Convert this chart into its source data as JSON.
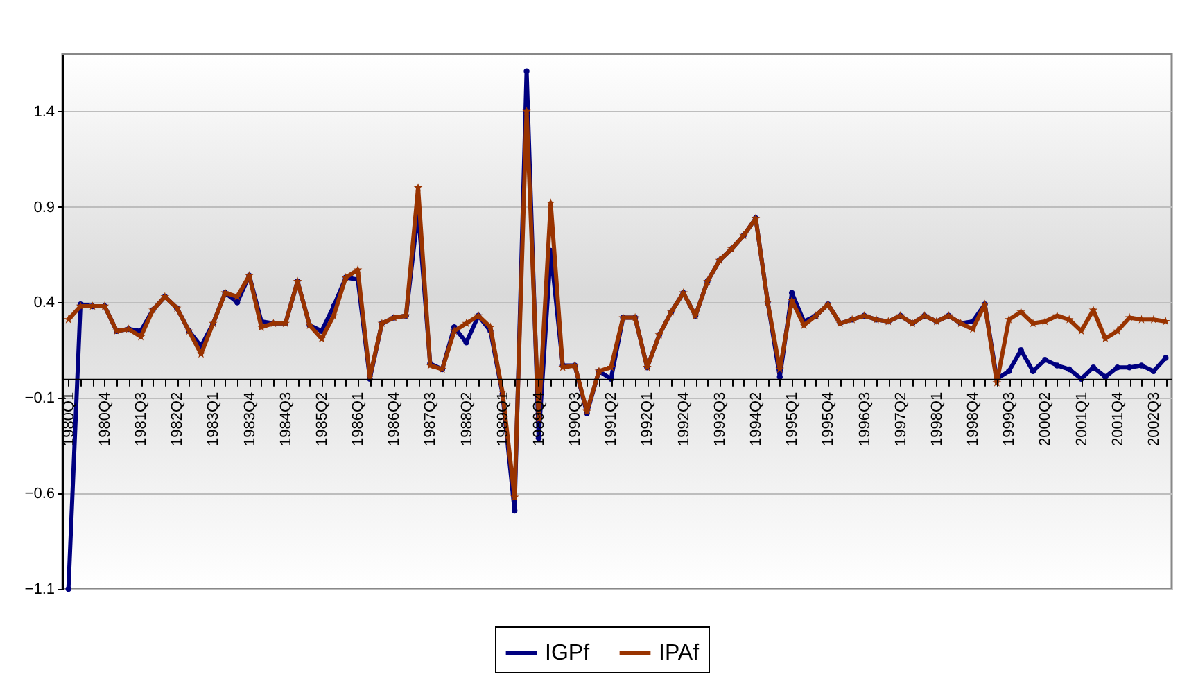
{
  "chart_data": {
    "type": "line",
    "categories": [
      "1980Q1",
      null,
      null,
      "1980Q4",
      null,
      null,
      "1981Q3",
      null,
      null,
      "1982Q2",
      null,
      null,
      "1983Q1",
      null,
      null,
      "1983Q4",
      null,
      null,
      "1984Q3",
      null,
      null,
      "1985Q2",
      null,
      null,
      "1986Q1",
      null,
      null,
      "1986Q4",
      null,
      null,
      "1987Q3",
      null,
      null,
      "1988Q2",
      null,
      null,
      "1989Q1",
      null,
      null,
      "1989Q4",
      null,
      null,
      "1990Q3",
      null,
      null,
      "1991Q2",
      null,
      null,
      "1992Q1",
      null,
      null,
      "1992Q4",
      null,
      null,
      "1993Q3",
      null,
      null,
      "1994Q2",
      null,
      null,
      "1995Q1",
      null,
      null,
      "1995Q4",
      null,
      null,
      "1996Q3",
      null,
      null,
      "1997Q2",
      null,
      null,
      "1998Q1",
      null,
      null,
      "1998Q4",
      null,
      null,
      "1999Q3",
      null,
      null,
      "2000Q2",
      null,
      null,
      "2001Q1",
      null,
      null,
      "2001Q4",
      null,
      null,
      "2002Q3",
      null
    ],
    "series": [
      {
        "name": "IGPf",
        "color": "#000080",
        "marker": "circle",
        "values": [
          -1.1,
          0.39,
          0.38,
          0.38,
          0.25,
          0.26,
          0.25,
          0.36,
          0.43,
          0.37,
          0.25,
          0.17,
          0.29,
          0.45,
          0.4,
          0.54,
          0.3,
          0.29,
          0.29,
          0.51,
          0.28,
          0.25,
          0.38,
          0.53,
          0.52,
          0.0,
          0.29,
          0.32,
          0.33,
          0.88,
          0.08,
          0.05,
          0.27,
          0.19,
          0.33,
          0.25,
          -0.08,
          -0.69,
          1.61,
          -0.31,
          0.67,
          0.07,
          0.07,
          -0.18,
          0.04,
          0.0,
          0.32,
          0.32,
          0.06,
          0.23,
          0.35,
          0.45,
          0.33,
          0.51,
          0.62,
          0.68,
          0.75,
          0.84,
          0.4,
          0.01,
          0.45,
          0.3,
          0.33,
          0.39,
          0.29,
          0.31,
          0.33,
          0.31,
          0.3,
          0.33,
          0.29,
          0.33,
          0.3,
          0.33,
          0.29,
          0.3,
          0.39,
          0.0,
          0.04,
          0.15,
          0.04,
          0.1,
          0.07,
          0.05,
          0.0,
          0.06,
          0.01,
          0.06,
          0.06,
          0.07,
          0.04,
          0.11
        ]
      },
      {
        "name": "IPAf",
        "color": "#993300",
        "marker": "star",
        "values": [
          0.31,
          0.38,
          0.38,
          0.38,
          0.25,
          0.26,
          0.22,
          0.36,
          0.43,
          0.37,
          0.25,
          0.13,
          0.29,
          0.45,
          0.43,
          0.54,
          0.27,
          0.29,
          0.29,
          0.51,
          0.28,
          0.21,
          0.33,
          0.53,
          0.57,
          0.01,
          0.29,
          0.32,
          0.33,
          1.0,
          0.07,
          0.05,
          0.25,
          0.29,
          0.33,
          0.27,
          -0.07,
          -0.62,
          1.4,
          -0.21,
          0.92,
          0.06,
          0.07,
          -0.17,
          0.04,
          0.06,
          0.32,
          0.32,
          0.06,
          0.23,
          0.35,
          0.45,
          0.33,
          0.51,
          0.62,
          0.68,
          0.75,
          0.84,
          0.4,
          0.05,
          0.41,
          0.28,
          0.33,
          0.39,
          0.29,
          0.31,
          0.33,
          0.31,
          0.3,
          0.33,
          0.29,
          0.33,
          0.3,
          0.33,
          0.29,
          0.26,
          0.39,
          -0.02,
          0.31,
          0.35,
          0.29,
          0.3,
          0.33,
          0.31,
          0.25,
          0.36,
          0.21,
          0.25,
          0.32,
          0.31,
          0.31,
          0.3
        ]
      }
    ],
    "ylim": [
      -1.1,
      1.7
    ],
    "yticks": [
      -1.1,
      -0.6,
      -0.1,
      0.4,
      0.9,
      1.4
    ],
    "grid": "y",
    "legend": "bottom"
  }
}
